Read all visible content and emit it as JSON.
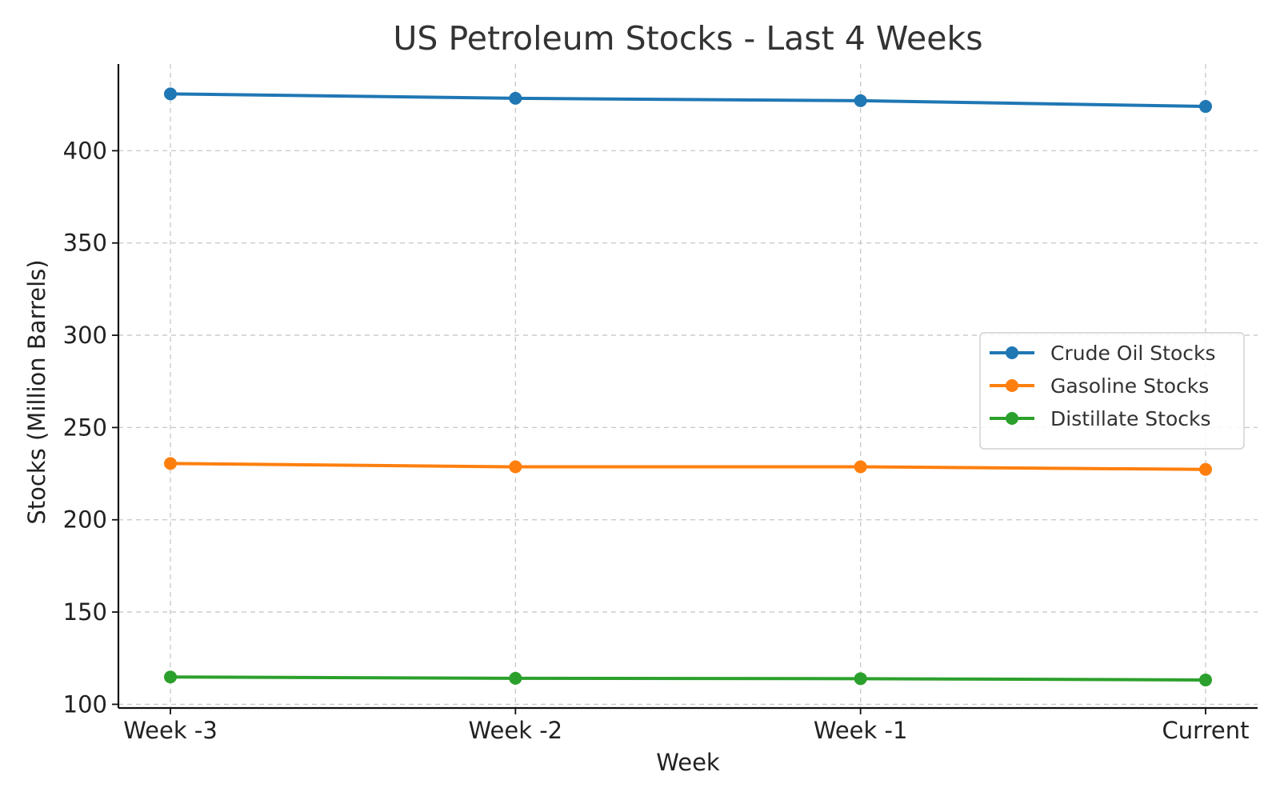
{
  "chart_data": {
    "type": "line",
    "title": "US Petroleum Stocks - Last 4 Weeks",
    "xlabel": "Week",
    "ylabel": "Stocks (Million Barrels)",
    "categories": [
      "Week -3",
      "Week -2",
      "Week -1",
      "Current"
    ],
    "ylim": [
      98,
      447
    ],
    "yticks": [
      100,
      150,
      200,
      250,
      300,
      350,
      400
    ],
    "grid": true,
    "legend_position": "right",
    "series": [
      {
        "name": "Crude Oil Stocks",
        "color": "#1f77b4",
        "values": [
          430.8,
          428.4,
          427.1,
          424.0
        ]
      },
      {
        "name": "Gasoline Stocks",
        "color": "#ff7f0e",
        "values": [
          230.5,
          228.7,
          228.7,
          227.3
        ]
      },
      {
        "name": "Distillate Stocks",
        "color": "#2ca02c",
        "values": [
          114.8,
          114.1,
          113.9,
          113.2
        ]
      }
    ]
  }
}
